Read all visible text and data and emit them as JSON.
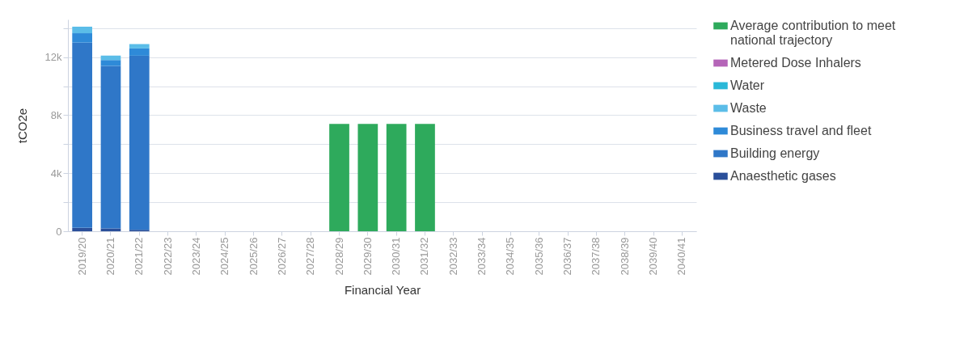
{
  "chart_data": {
    "type": "bar",
    "stacked": true,
    "xlabel": "Financial Year",
    "ylabel": "tCO2e",
    "categories": [
      "2019/20",
      "2020/21",
      "2021/22",
      "2022/23",
      "2023/24",
      "2024/25",
      "2025/26",
      "2026/27",
      "2027/28",
      "2028/29",
      "2029/30",
      "2030/31",
      "2031/32",
      "2032/33",
      "2033/34",
      "2034/35",
      "2035/36",
      "2036/37",
      "2037/38",
      "2038/39",
      "2039/40",
      "2040/41"
    ],
    "series": [
      {
        "name": "Anaesthetic gases",
        "color": "#2a4f9a",
        "values": [
          230,
          200,
          100,
          null,
          null,
          null,
          null,
          null,
          null,
          null,
          null,
          null,
          null,
          null,
          null,
          null,
          null,
          null,
          null,
          null,
          null,
          null
        ]
      },
      {
        "name": "Building energy",
        "color": "#2f77c8",
        "values": [
          12770,
          11200,
          12000,
          null,
          null,
          null,
          null,
          null,
          null,
          null,
          null,
          null,
          null,
          null,
          null,
          null,
          null,
          null,
          null,
          null,
          null,
          null
        ]
      },
      {
        "name": "Business travel and fleet",
        "color": "#2e8ad8",
        "values": [
          650,
          400,
          500,
          null,
          null,
          null,
          null,
          null,
          null,
          null,
          null,
          null,
          null,
          null,
          null,
          null,
          null,
          null,
          null,
          null,
          null,
          null
        ]
      },
      {
        "name": "Waste",
        "color": "#5bbde8",
        "values": [
          450,
          300,
          300,
          null,
          null,
          null,
          null,
          null,
          null,
          null,
          null,
          null,
          null,
          null,
          null,
          null,
          null,
          null,
          null,
          null,
          null,
          null
        ]
      },
      {
        "name": "Water",
        "color": "#2ab8d8",
        "values": [
          null,
          null,
          null,
          null,
          null,
          null,
          null,
          null,
          null,
          null,
          null,
          null,
          null,
          null,
          null,
          null,
          null,
          null,
          null,
          null,
          null,
          null
        ]
      },
      {
        "name": "Metered Dose Inhalers",
        "color": "#b565b8",
        "values": [
          null,
          null,
          null,
          null,
          null,
          null,
          null,
          null,
          null,
          null,
          null,
          null,
          null,
          null,
          null,
          null,
          null,
          null,
          null,
          null,
          null,
          null
        ]
      },
      {
        "name": "Average contribution to meet national trajectory",
        "color": "#2eaa5c",
        "values": [
          null,
          null,
          null,
          null,
          null,
          null,
          null,
          null,
          null,
          7400,
          7400,
          7400,
          7400,
          null,
          null,
          null,
          null,
          null,
          null,
          null,
          null,
          null
        ]
      }
    ],
    "ylim": [
      0,
      14600
    ],
    "yticks": [
      0,
      {
        "value": 2000,
        "label": null
      },
      {
        "value": 4000,
        "label": "4k"
      },
      {
        "value": 6000,
        "label": null
      },
      {
        "value": 8000,
        "label": "8k"
      },
      {
        "value": 10000,
        "label": null
      },
      {
        "value": 12000,
        "label": "12k"
      },
      {
        "value": 14000,
        "label": null
      }
    ],
    "grid": "y",
    "legend": "right"
  }
}
